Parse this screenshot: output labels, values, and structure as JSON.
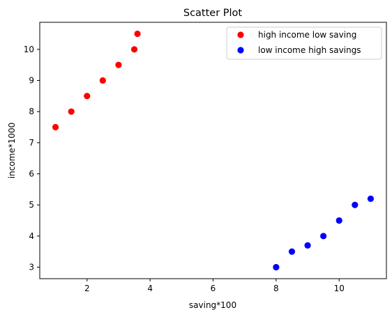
{
  "chart_data": {
    "type": "scatter",
    "title": "Scatter Plot",
    "xlabel": "saving*100",
    "ylabel": "income*1000",
    "xlim": [
      0.5,
      11.5
    ],
    "ylim": [
      2.63,
      10.87
    ],
    "xticks": [
      2,
      4,
      6,
      8,
      10
    ],
    "yticks": [
      3,
      4,
      5,
      6,
      7,
      8,
      9,
      10
    ],
    "grid": false,
    "legend_position": "top-right",
    "series": [
      {
        "name": "high income low saving",
        "color": "#ff0000",
        "points": [
          {
            "x": 1.0,
            "y": 7.5
          },
          {
            "x": 1.5,
            "y": 8.0
          },
          {
            "x": 2.0,
            "y": 8.5
          },
          {
            "x": 2.5,
            "y": 9.0
          },
          {
            "x": 3.0,
            "y": 9.5
          },
          {
            "x": 3.5,
            "y": 10.0
          },
          {
            "x": 3.6,
            "y": 10.5
          }
        ]
      },
      {
        "name": "low income high savings",
        "color": "#0000ff",
        "points": [
          {
            "x": 8.0,
            "y": 3.0
          },
          {
            "x": 8.5,
            "y": 3.5
          },
          {
            "x": 9.0,
            "y": 3.7
          },
          {
            "x": 9.5,
            "y": 4.0
          },
          {
            "x": 10.0,
            "y": 4.5
          },
          {
            "x": 10.5,
            "y": 5.0
          },
          {
            "x": 11.0,
            "y": 5.2
          }
        ]
      }
    ]
  }
}
